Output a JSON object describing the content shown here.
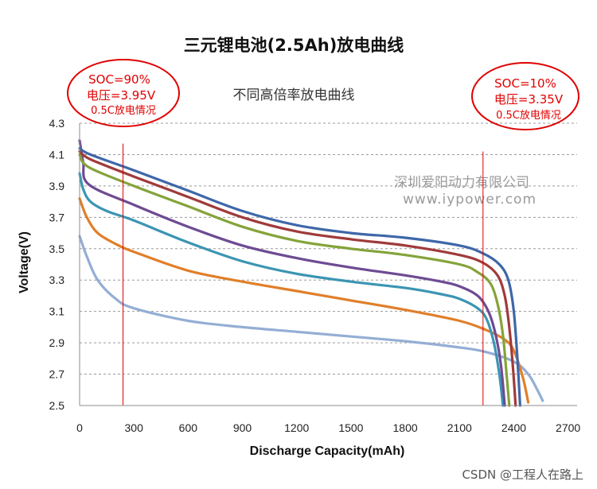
{
  "chart_data": {
    "type": "line",
    "title": "三元锂电池(2.5Ah)放电曲线",
    "subtitle": "不同高倍率放电曲线",
    "xlabel": "Discharge Capacity(mAh)",
    "ylabel": "Voltage(V)",
    "xlim": [
      0,
      2750
    ],
    "ylim": [
      2.5,
      4.3
    ],
    "x_ticks": [
      "0",
      "300",
      "600",
      "900",
      "1200",
      "1500",
      "1800",
      "2100",
      "2400",
      "2700"
    ],
    "y_ticks": [
      "2.5",
      "2.7",
      "2.9",
      "3.1",
      "3.3",
      "3.5",
      "3.7",
      "3.9",
      "4.1",
      "4.3"
    ],
    "grid": "horizontal-dashed",
    "series": [
      {
        "name": "blue",
        "color": "#3e67a8",
        "x": [
          0,
          60,
          300,
          600,
          900,
          1200,
          1500,
          1800,
          2100,
          2230,
          2320,
          2370,
          2400,
          2420,
          2435
        ],
        "y": [
          4.14,
          4.1,
          4.0,
          3.87,
          3.74,
          3.65,
          3.6,
          3.57,
          3.52,
          3.47,
          3.4,
          3.3,
          3.1,
          2.8,
          2.5
        ]
      },
      {
        "name": "red",
        "color": "#a03a3a",
        "x": [
          0,
          60,
          300,
          600,
          900,
          1200,
          1500,
          1800,
          2100,
          2230,
          2310,
          2350,
          2375,
          2395,
          2410
        ],
        "y": [
          4.12,
          4.07,
          3.96,
          3.83,
          3.7,
          3.61,
          3.56,
          3.52,
          3.46,
          3.41,
          3.33,
          3.2,
          3.0,
          2.75,
          2.5
        ]
      },
      {
        "name": "green",
        "color": "#84a33a",
        "x": [
          0,
          50,
          300,
          600,
          900,
          1200,
          1500,
          1800,
          2100,
          2200,
          2270,
          2310,
          2340,
          2360,
          2375
        ],
        "y": [
          4.1,
          4.02,
          3.9,
          3.77,
          3.64,
          3.55,
          3.5,
          3.46,
          3.4,
          3.35,
          3.28,
          3.15,
          2.95,
          2.7,
          2.5
        ]
      },
      {
        "name": "purple",
        "color": "#6e4b93",
        "x": [
          0,
          20,
          50,
          300,
          600,
          900,
          1200,
          1500,
          1800,
          2000,
          2100,
          2200,
          2260,
          2300,
          2330,
          2350
        ],
        "y": [
          4.19,
          4.05,
          3.91,
          3.78,
          3.64,
          3.52,
          3.44,
          3.38,
          3.33,
          3.29,
          3.26,
          3.2,
          3.1,
          2.95,
          2.75,
          2.5
        ]
      },
      {
        "name": "teal",
        "color": "#3b95b3",
        "x": [
          0,
          20,
          60,
          150,
          300,
          600,
          900,
          1200,
          1500,
          1800,
          2000,
          2100,
          2200,
          2250,
          2290,
          2320,
          2340
        ],
        "y": [
          3.98,
          3.88,
          3.8,
          3.74,
          3.68,
          3.54,
          3.42,
          3.34,
          3.29,
          3.25,
          3.21,
          3.18,
          3.12,
          3.05,
          2.9,
          2.7,
          2.5
        ]
      },
      {
        "name": "orange",
        "color": "#e07f2a",
        "x": [
          0,
          40,
          100,
          200,
          300,
          600,
          900,
          1200,
          1500,
          1800,
          2100,
          2250,
          2350,
          2400,
          2450,
          2480
        ],
        "y": [
          3.82,
          3.7,
          3.6,
          3.53,
          3.48,
          3.36,
          3.29,
          3.23,
          3.17,
          3.11,
          3.04,
          2.98,
          2.92,
          2.85,
          2.68,
          2.52
        ]
      },
      {
        "name": "light-blue",
        "color": "#94aed4",
        "x": [
          0,
          40,
          100,
          200,
          300,
          600,
          900,
          1200,
          1500,
          1800,
          2100,
          2250,
          2400,
          2480,
          2530,
          2560
        ],
        "y": [
          3.58,
          3.45,
          3.3,
          3.18,
          3.12,
          3.04,
          3.0,
          2.97,
          2.94,
          2.91,
          2.87,
          2.84,
          2.78,
          2.7,
          2.6,
          2.53
        ]
      }
    ],
    "vlines": [
      {
        "x": 240,
        "y_top": 4.17,
        "color": "#e00000"
      },
      {
        "x": 2230,
        "y_top": 4.12,
        "color": "#e00000"
      }
    ],
    "annotations": [
      {
        "name": "left",
        "lines": [
          "SOC=90%",
          "电压=3.95V",
          "0.5C放电情况"
        ]
      },
      {
        "name": "right",
        "lines": [
          "SOC=10%",
          "电压=3.35V",
          "0.5C放电情况"
        ]
      }
    ],
    "watermark": [
      "深圳爱阳动力有限公司",
      "www.iypower.com"
    ],
    "footer": "CSDN @工程人在路上"
  }
}
